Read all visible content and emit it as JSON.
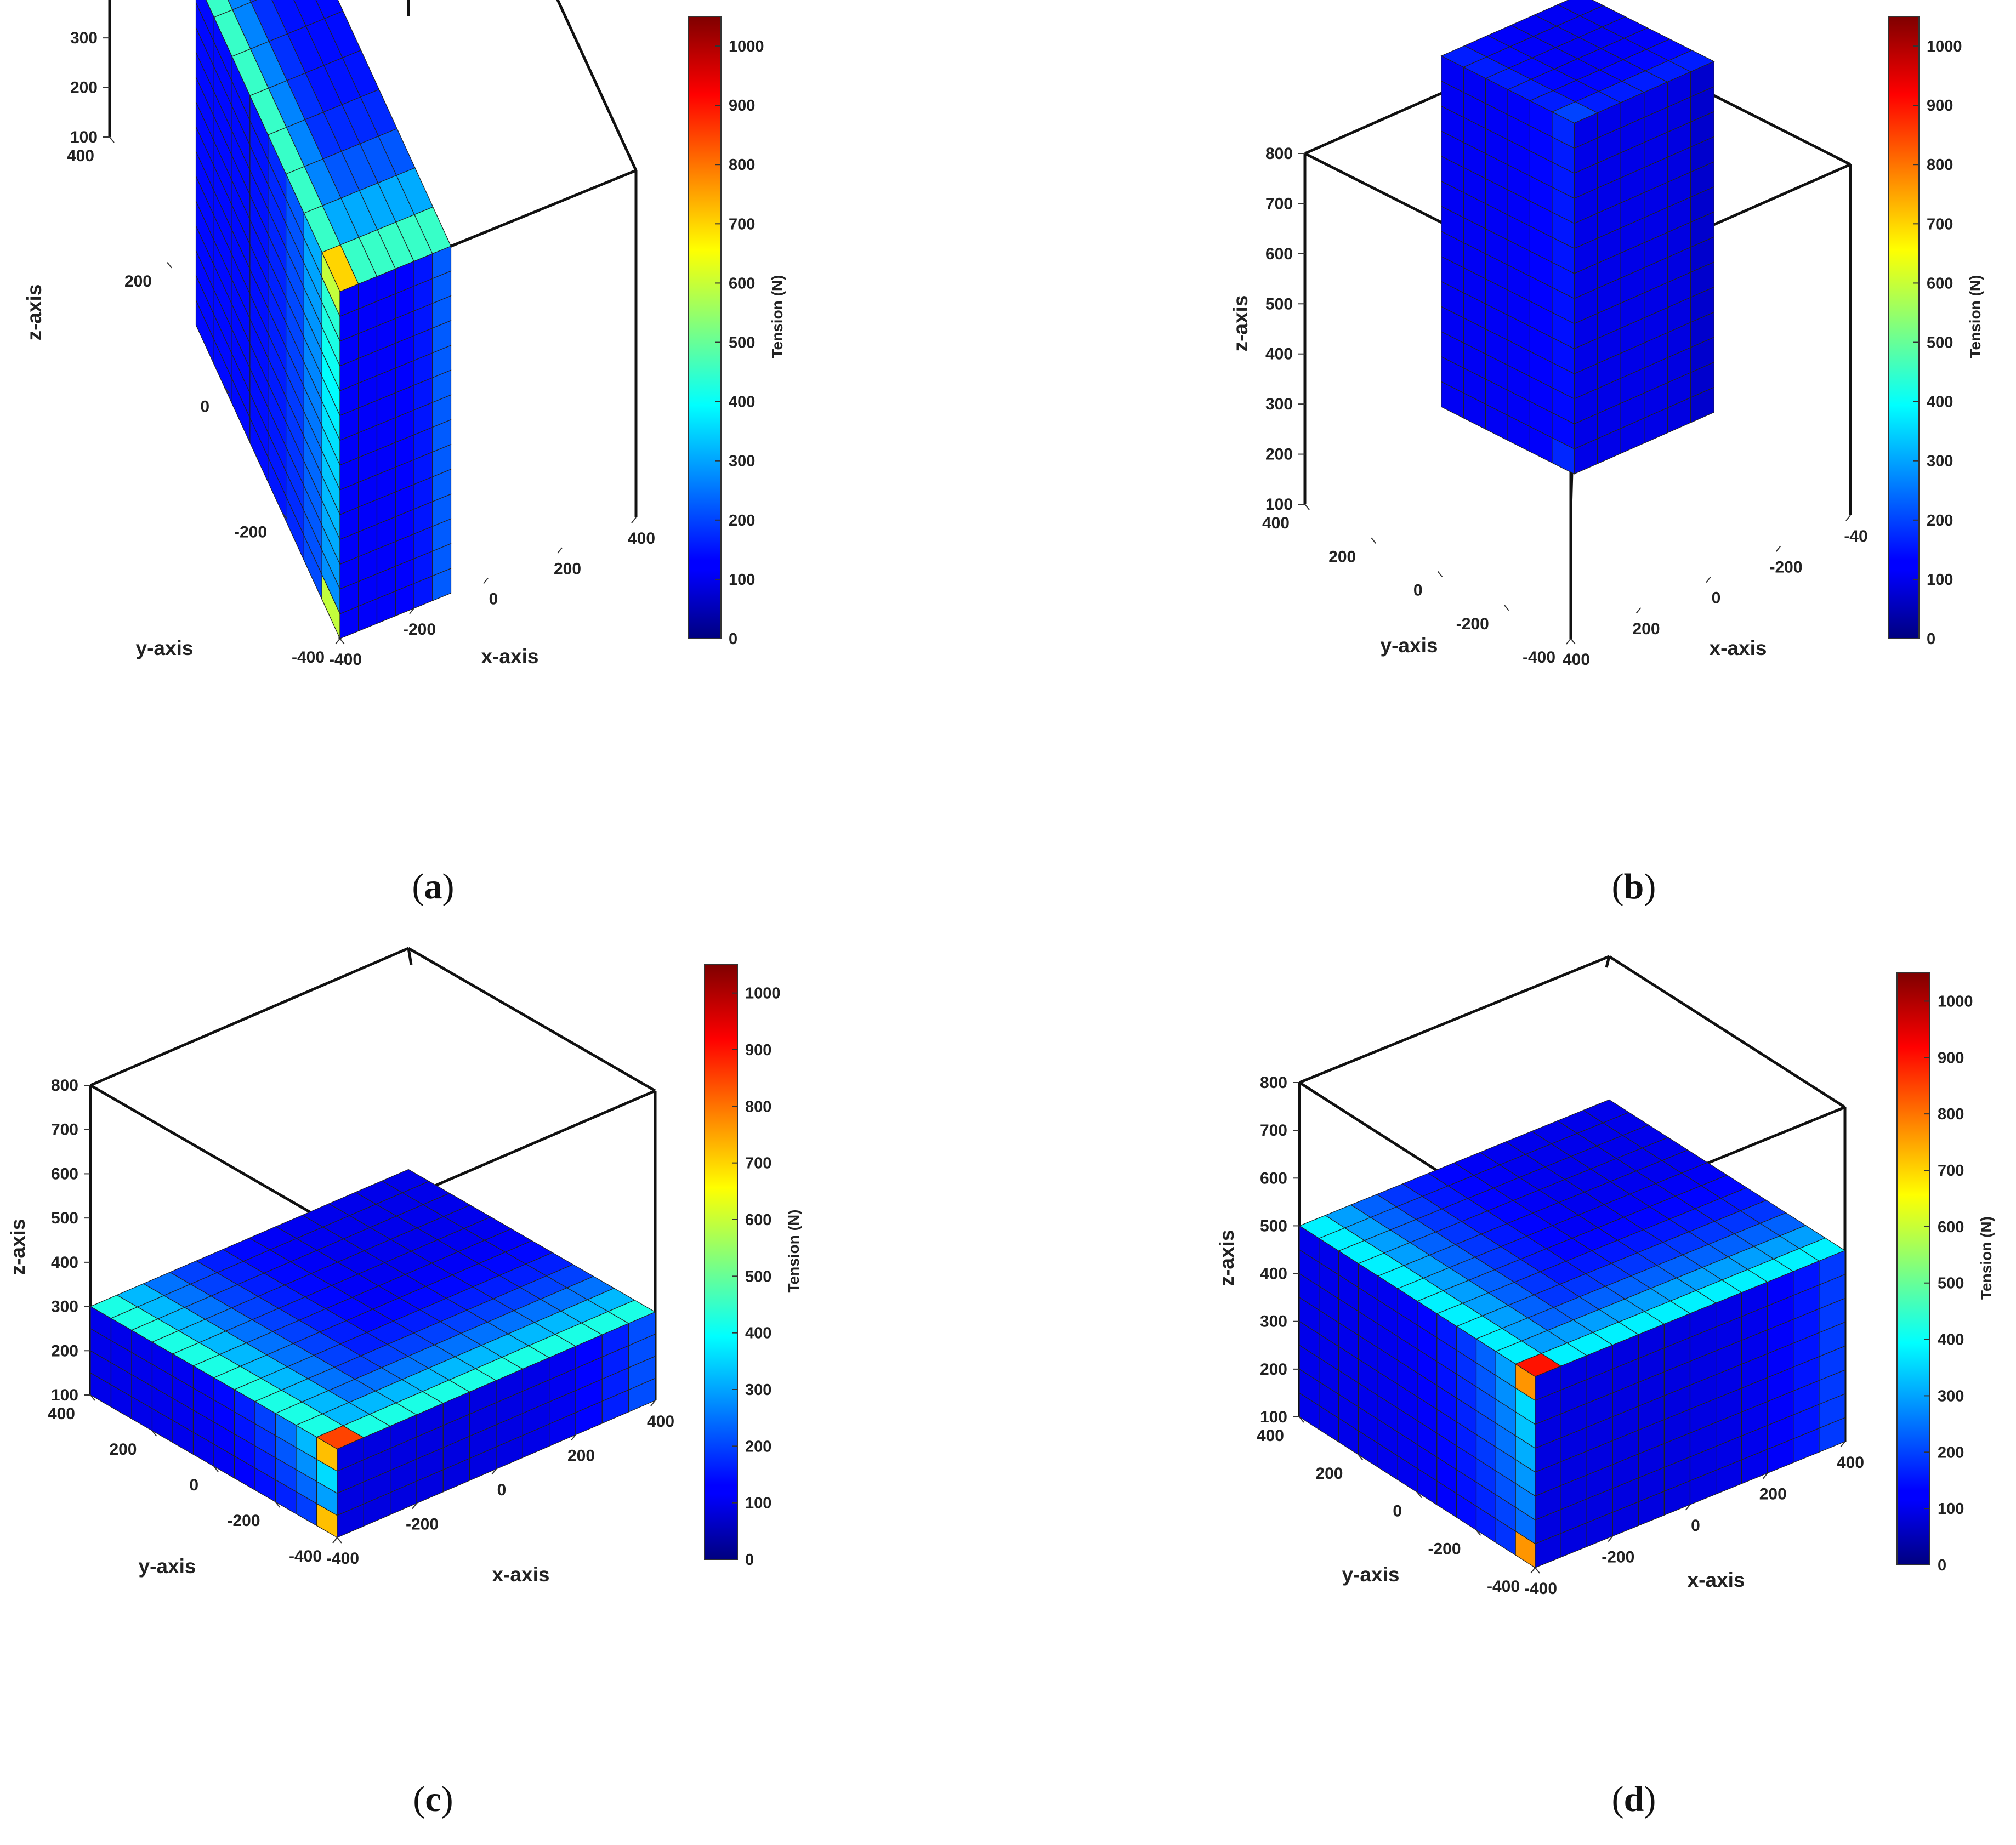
{
  "chart_data": [
    {
      "type": "3d-voxel",
      "panel_label": "a",
      "xlabel": "x-axis",
      "ylabel": "y-axis",
      "zlabel": "z-axis",
      "xlim": [
        -400,
        400
      ],
      "ylim": [
        -400,
        400
      ],
      "zlim": [
        100,
        800
      ],
      "x_ticks": [
        "-400",
        "-200",
        "0",
        "200",
        "400"
      ],
      "y_ticks": [
        "-400",
        "-200",
        "0",
        "200",
        "400"
      ],
      "z_ticks": [
        "100",
        "200",
        "300",
        "400",
        "500",
        "600",
        "700",
        "800"
      ],
      "block": {
        "x_range": [
          -400,
          -100
        ],
        "y_range": [
          -100,
          400
        ],
        "z_range": [
          100,
          800
        ],
        "nx": 6,
        "ny": 8,
        "nz": 14,
        "edge_tension": 450,
        "corner_tension": 700,
        "base_tension": 140
      },
      "colorbar": {
        "label": "Tension (N)",
        "range": [
          0,
          1050
        ],
        "ticks": [
          "0",
          "100",
          "200",
          "300",
          "400",
          "500",
          "600",
          "700",
          "800",
          "900",
          "1000"
        ]
      }
    },
    {
      "type": "3d-voxel",
      "panel_label": "b",
      "xlabel": "x-axis",
      "ylabel": "y-axis",
      "zlabel": "z-axis",
      "xlim": [
        -400,
        400
      ],
      "ylim": [
        -400,
        400
      ],
      "zlim": [
        100,
        800
      ],
      "x_ticks": [
        "400",
        "200",
        "0",
        "-200",
        "-40"
      ],
      "y_ticks": [
        "-400",
        "-200",
        "0",
        "200",
        "400"
      ],
      "z_ticks": [
        "100",
        "200",
        "300",
        "400",
        "500",
        "600",
        "700",
        "800"
      ],
      "block": {
        "x_range": [
          -200,
          200
        ],
        "y_range": [
          -200,
          200
        ],
        "z_range": [
          300,
          1000
        ],
        "nx": 6,
        "ny": 6,
        "nz": 14,
        "edge_tension": 160,
        "corner_tension": 200,
        "base_tension": 120
      },
      "colorbar": {
        "label": "Tension (N)",
        "range": [
          0,
          1050
        ],
        "ticks": [
          "0",
          "100",
          "200",
          "300",
          "400",
          "500",
          "600",
          "700",
          "800",
          "900",
          "1000"
        ]
      }
    },
    {
      "type": "3d-voxel",
      "panel_label": "c",
      "xlabel": "x-axis",
      "ylabel": "y-axis",
      "zlabel": "z-axis",
      "xlim": [
        -400,
        400
      ],
      "ylim": [
        -400,
        400
      ],
      "zlim": [
        100,
        800
      ],
      "x_ticks": [
        "-400",
        "-200",
        "0",
        "200",
        "400"
      ],
      "y_ticks": [
        "-400",
        "-200",
        "0",
        "200",
        "400"
      ],
      "z_ticks": [
        "100",
        "200",
        "300",
        "400",
        "500",
        "600",
        "700",
        "800"
      ],
      "block": {
        "x_range": [
          -400,
          400
        ],
        "y_range": [
          -400,
          400
        ],
        "z_range": [
          100,
          300
        ],
        "nx": 12,
        "ny": 12,
        "nz": 4,
        "edge_tension": 420,
        "corner_tension": 850,
        "base_tension": 110
      },
      "colorbar": {
        "label": "Tension (N)",
        "range": [
          0,
          1050
        ],
        "ticks": [
          "0",
          "100",
          "200",
          "300",
          "400",
          "500",
          "600",
          "700",
          "800",
          "900",
          "1000"
        ]
      }
    },
    {
      "type": "3d-voxel",
      "panel_label": "d",
      "xlabel": "x-axis",
      "ylabel": "y-axis",
      "zlabel": "z-axis",
      "xlim": [
        -400,
        400
      ],
      "ylim": [
        -400,
        400
      ],
      "zlim": [
        100,
        800
      ],
      "x_ticks": [
        "-400",
        "-200",
        "0",
        "200",
        "400"
      ],
      "y_ticks": [
        "-400",
        "-200",
        "0",
        "200",
        "400"
      ],
      "z_ticks": [
        "100",
        "200",
        "300",
        "400",
        "500",
        "600",
        "700",
        "800"
      ],
      "block": {
        "x_range": [
          -400,
          400
        ],
        "y_range": [
          -400,
          400
        ],
        "z_range": [
          100,
          500
        ],
        "nx": 12,
        "ny": 12,
        "nz": 8,
        "edge_tension": 380,
        "corner_tension": 900,
        "base_tension": 110
      },
      "colorbar": {
        "label": "Tension (N)",
        "range": [
          0,
          1050
        ],
        "ticks": [
          "0",
          "100",
          "200",
          "300",
          "400",
          "500",
          "600",
          "700",
          "800",
          "900",
          "1000"
        ]
      }
    }
  ]
}
